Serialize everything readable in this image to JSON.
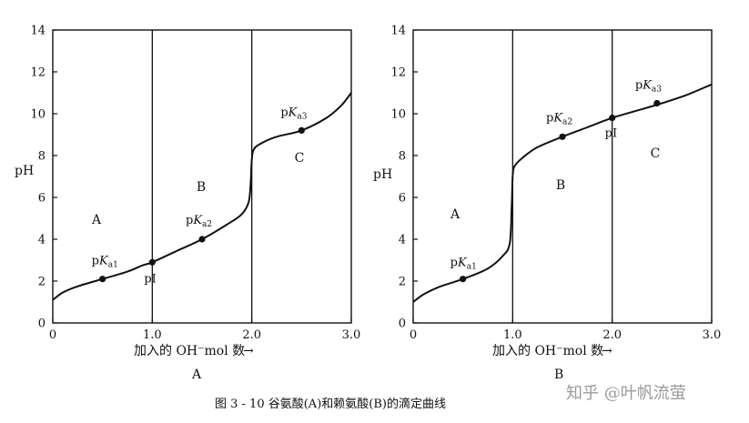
{
  "caption": "图 3 - 10   谷氨酸(A)和赖氨酸(B)的滴定曲线",
  "watermark": "知乎 @叶帆流萤",
  "chart_data": [
    {
      "type": "line",
      "panel_label": "A",
      "xlabel": "加入的 OH⁻mol 数",
      "xlabel_arrow": "→",
      "ylabel": "pH",
      "xlim": [
        0,
        3.0
      ],
      "ylim": [
        0,
        14
      ],
      "xticks": [
        "0",
        "1.0",
        "2.0",
        "3.0"
      ],
      "yticks": [
        "0",
        "2",
        "4",
        "6",
        "8",
        "10",
        "12",
        "14"
      ],
      "vlines": [
        1.0,
        2.0
      ],
      "regions": [
        "A",
        "B",
        "C"
      ],
      "curve": {
        "x": [
          0,
          0.1,
          0.25,
          0.5,
          0.75,
          0.9,
          1.0,
          1.25,
          1.5,
          1.75,
          1.9,
          1.97,
          1.99,
          2.0,
          2.02,
          2.1,
          2.25,
          2.5,
          2.75,
          2.9,
          3.0
        ],
        "y": [
          1.1,
          1.45,
          1.75,
          2.1,
          2.45,
          2.75,
          2.9,
          3.45,
          4.0,
          4.7,
          5.2,
          5.8,
          6.8,
          7.8,
          8.3,
          8.6,
          8.9,
          9.2,
          9.8,
          10.4,
          11.0
        ]
      },
      "points": [
        {
          "label": "pKa1",
          "x": 0.5,
          "y": 2.1
        },
        {
          "label": "pI",
          "x": 1.0,
          "y": 2.9
        },
        {
          "label": "pKa2",
          "x": 1.5,
          "y": 4.0
        },
        {
          "label": "pKa3",
          "x": 2.5,
          "y": 9.2
        }
      ]
    },
    {
      "type": "line",
      "panel_label": "B",
      "xlabel": "加入的 OH⁻mol 数",
      "xlabel_arrow": "→",
      "ylabel": "pH",
      "xlim": [
        0,
        3.0
      ],
      "ylim": [
        0,
        14
      ],
      "xticks": [
        "0",
        "1.0",
        "2.0",
        "3.0"
      ],
      "yticks": [
        "0",
        "2",
        "4",
        "6",
        "8",
        "10",
        "12",
        "14"
      ],
      "vlines": [
        1.0,
        2.0
      ],
      "regions": [
        "A",
        "B",
        "C"
      ],
      "curve": {
        "x": [
          0,
          0.1,
          0.25,
          0.5,
          0.75,
          0.9,
          0.97,
          0.99,
          1.0,
          1.02,
          1.1,
          1.25,
          1.5,
          1.75,
          2.0,
          2.25,
          2.5,
          2.75,
          3.0
        ],
        "y": [
          1.0,
          1.35,
          1.7,
          2.1,
          2.6,
          3.2,
          3.8,
          5.5,
          7.0,
          7.5,
          7.9,
          8.4,
          8.9,
          9.35,
          9.8,
          10.15,
          10.5,
          10.9,
          11.4
        ]
      },
      "points": [
        {
          "label": "pKa1",
          "x": 0.5,
          "y": 2.1
        },
        {
          "label": "pKa2",
          "x": 1.5,
          "y": 8.9
        },
        {
          "label": "pI",
          "x": 2.0,
          "y": 9.8
        },
        {
          "label": "pKa3",
          "x": 2.45,
          "y": 10.5
        }
      ]
    }
  ]
}
